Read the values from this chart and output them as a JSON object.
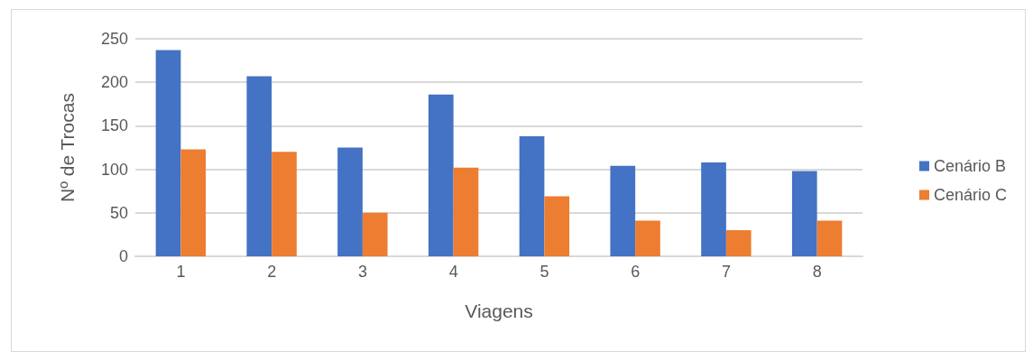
{
  "chart_data": {
    "type": "bar",
    "xlabel": "Viagens",
    "ylabel": "Nº de Trocas",
    "categories": [
      "1",
      "2",
      "3",
      "4",
      "5",
      "6",
      "7",
      "8"
    ],
    "series": [
      {
        "name": "Cenário B",
        "color": "#4472c4",
        "values": [
          237,
          207,
          125,
          186,
          138,
          104,
          108,
          98
        ]
      },
      {
        "name": "Cenário C",
        "color": "#ed7d31",
        "values": [
          123,
          120,
          50,
          102,
          69,
          41,
          30,
          41
        ]
      }
    ],
    "ylim": [
      0,
      250
    ],
    "yticks": [
      0,
      50,
      100,
      150,
      200,
      250
    ],
    "grid": "y",
    "legend": "right"
  }
}
